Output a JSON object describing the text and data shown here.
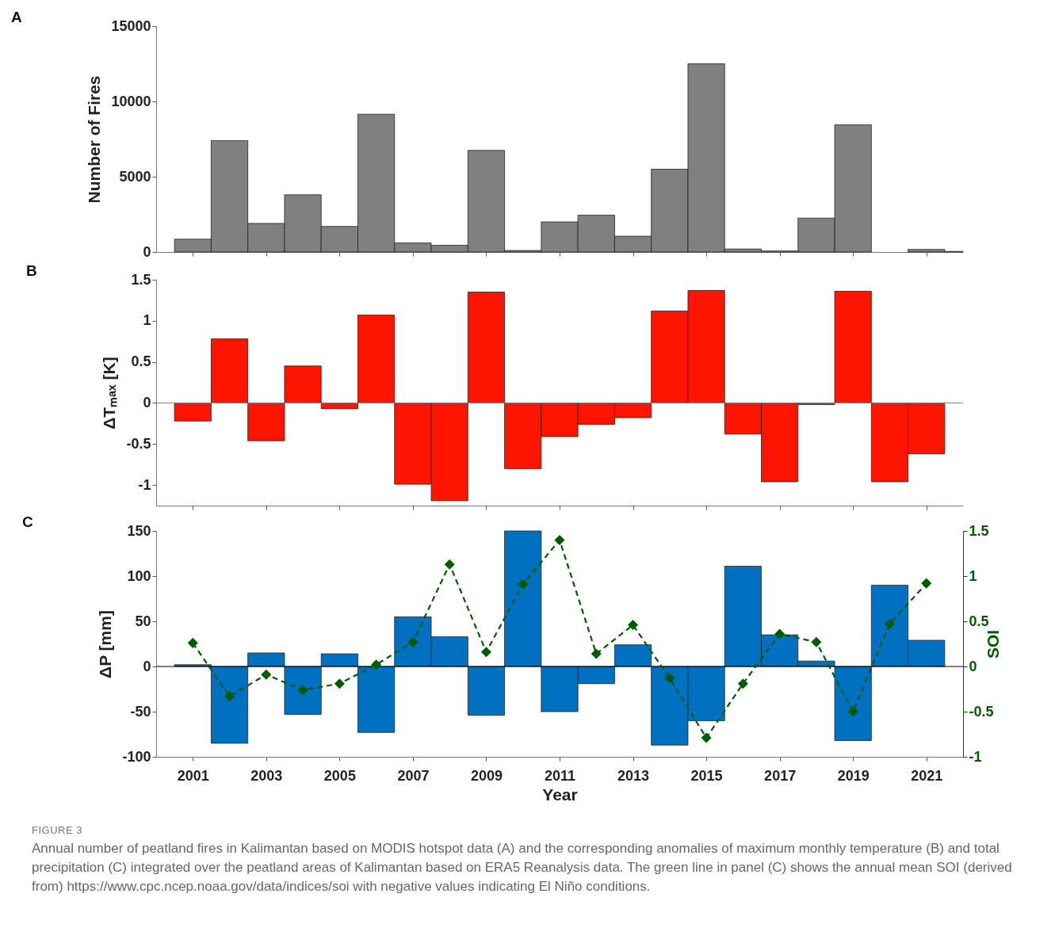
{
  "chart_data": [
    {
      "type": "histogram",
      "title": "A",
      "ylabel": "Number of Fires",
      "bins": [
        2000.5,
        2001.5,
        2002.5,
        2003.5,
        2004.5,
        2005.5,
        2006.5,
        2007.5,
        2008.5,
        2009.5,
        2010.5,
        2011.5,
        2012.5,
        2013.5,
        2014.5,
        2015.5,
        2016.5,
        2017.5,
        2018.5,
        2019.5,
        2020.5,
        2021.5,
        2022
      ],
      "values": [
        850,
        7400,
        1900,
        3800,
        1700,
        9150,
        600,
        450,
        6750,
        100,
        2000,
        2450,
        1050,
        5500,
        12500,
        200,
        70,
        2250,
        8450,
        null,
        170,
        40
      ],
      "color": "#808080",
      "xlim": [
        2000,
        2022
      ],
      "xticks": [
        2001,
        2003,
        2005,
        2007,
        2009,
        2011,
        2013,
        2015,
        2017,
        2019,
        2021
      ],
      "ylim": [
        0,
        15000
      ],
      "yticks": [
        0,
        5000,
        10000,
        15000
      ],
      "tick_labels": "y",
      "grid": false
    },
    {
      "type": "bar",
      "title": "B",
      "ylabel": "ΔTₘₐₓ [K]",
      "x": [
        2001,
        2002,
        2003,
        2004,
        2005,
        2006,
        2007,
        2008,
        2009,
        2010,
        2011,
        2012,
        2013,
        2014,
        2015,
        2016,
        2017,
        2018,
        2019,
        2020,
        2021
      ],
      "values": [
        -0.22,
        0.78,
        -0.46,
        0.45,
        -0.07,
        1.07,
        -0.99,
        -1.19,
        1.35,
        -0.8,
        -0.41,
        -0.26,
        -0.18,
        1.12,
        1.37,
        -0.38,
        -0.96,
        -0.02,
        1.36,
        -0.96,
        -0.62
      ],
      "color": "#ff1400",
      "xlim": [
        2000,
        2022
      ],
      "xticks": [
        2001,
        2003,
        2005,
        2007,
        2009,
        2011,
        2013,
        2015,
        2017,
        2019,
        2021
      ],
      "ylim": [
        -1.25,
        1.5
      ],
      "yticks": [
        -1,
        -0.5,
        0,
        0.5,
        1,
        1.5
      ],
      "tick_labels": "y",
      "grid": false,
      "ref_lines": [
        {
          "axis": "y",
          "value": 0,
          "color": "#808080"
        }
      ]
    },
    {
      "type": "bar",
      "title": "C",
      "xlabel": "Year",
      "ylabel": "ΔP [mm]",
      "y2label": "SOI",
      "x": [
        2001,
        2002,
        2003,
        2004,
        2005,
        2006,
        2007,
        2008,
        2009,
        2010,
        2011,
        2012,
        2013,
        2014,
        2015,
        2016,
        2017,
        2018,
        2019,
        2020,
        2021
      ],
      "series": [
        {
          "color": "#0070c0",
          "values": [
            2,
            -85,
            15,
            -53,
            14,
            -73,
            55,
            33,
            -54,
            150,
            -50,
            -19,
            24,
            -87,
            -60,
            111,
            35,
            6,
            -82,
            90,
            29
          ]
        },
        {
          "type": "line",
          "axis": "y2",
          "color": "#005a00",
          "marker": "diamond",
          "line_style": "dashed",
          "values": [
            0.26,
            -0.33,
            -0.09,
            -0.26,
            -0.19,
            0.02,
            0.27,
            1.13,
            0.16,
            0.91,
            1.4,
            0.14,
            0.46,
            -0.13,
            -0.79,
            -0.19,
            0.36,
            0.27,
            -0.5,
            0.47,
            0.92
          ]
        }
      ],
      "xlim": [
        2000,
        2022
      ],
      "xticks": [
        2001,
        2003,
        2005,
        2007,
        2009,
        2011,
        2013,
        2015,
        2017,
        2019,
        2021
      ],
      "ylim": [
        -100,
        150
      ],
      "yticks": [
        -100,
        -50,
        0,
        50,
        100,
        150
      ],
      "y2lim": [
        -1,
        1.5
      ],
      "y2ticks": [
        -1,
        -0.5,
        0,
        0.5,
        1,
        1.5
      ],
      "grid": false,
      "ref_lines": [
        {
          "axis": "y",
          "value": 0,
          "color": "#000000"
        }
      ],
      "annotations": [
        "FIGURE 3",
        "Annual number of peatland fires in Kalimantan based on MODIS hotspot data (A) and the corresponding anomalies of maximum monthly temperature (B) and total precipitation (C) integrated over the peatland areas of Kalimantan based on ERA5 Reanalysis data. The green line in panel (C) shows the annual mean SOI (derived from) https://www.cpc.ncep.noaa.gov/data/indices/soi with negative values indicating El Niño conditions."
      ]
    }
  ]
}
